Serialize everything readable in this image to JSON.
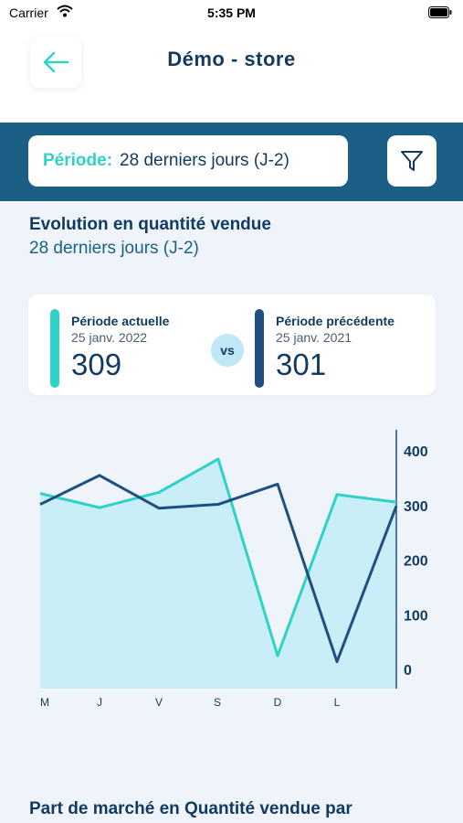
{
  "status_bar": {
    "carrier": "Carrier",
    "time": "5:35 PM"
  },
  "header": {
    "title": "Démo - store"
  },
  "filter": {
    "label": "Période:",
    "value": "28 derniers jours (J-2)"
  },
  "section": {
    "title": "Evolution en quantité vendue",
    "subtitle": "28 derniers jours (J-2)"
  },
  "comparison": {
    "current": {
      "label": "Période actuelle",
      "date": "25 janv. 2022",
      "value": "309"
    },
    "vs": "vs",
    "previous": {
      "label": "Période précédente",
      "date": "25 janv. 2021",
      "value": "301"
    }
  },
  "colors": {
    "current": "#2ed3c6",
    "previous": "#1f4f82",
    "area": "#c9eef8",
    "header_band": "#1b5f86"
  },
  "chart_data": {
    "type": "line",
    "categories": [
      "M",
      "J",
      "V",
      "S",
      "D",
      "L",
      ""
    ],
    "ylim": [
      0,
      400
    ],
    "y_ticks": [
      0,
      100,
      200,
      300,
      400
    ],
    "series": [
      {
        "values": [
          322,
          296,
          324,
          385,
          25,
          320,
          306
        ]
      },
      {
        "values": [
          302,
          355,
          295,
          302,
          339,
          14,
          299
        ]
      }
    ]
  },
  "bottom": {
    "title": "Part de marché en Quantité vendue par"
  }
}
